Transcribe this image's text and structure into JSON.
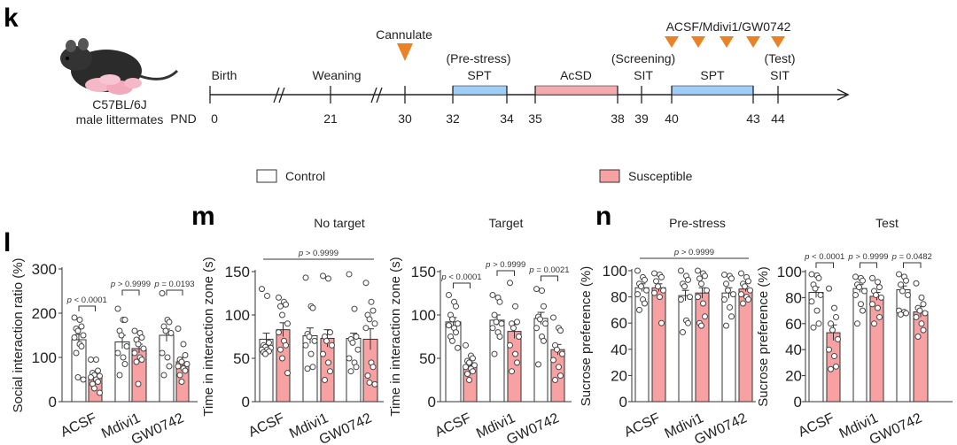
{
  "colors": {
    "control": "#FFFFFF",
    "susceptible": "#F7A1A3",
    "injection_marker": "#E8832A",
    "spt_bar": "#9FCDF6",
    "acsd_bar": "#F5AAAE",
    "axis": "#333333"
  },
  "panels": {
    "k": "k",
    "l": "l",
    "m": "m",
    "n": "n"
  },
  "timeline": {
    "mouse_strain": "C57BL/6J",
    "mouse_group": "male littermates",
    "axis_prefix": "PND",
    "days": [
      "0",
      "21",
      "30",
      "32",
      "34",
      "35",
      "38",
      "39",
      "40",
      "43",
      "44"
    ],
    "events": {
      "birth": "Birth",
      "weaning": "Weaning",
      "cannulate": "Cannulate",
      "pre_stress": "(Pre-stress)",
      "spt1": "SPT",
      "acsd": "AcSD",
      "screening": "(Screening)",
      "sit1": "SIT",
      "spt2": "SPT",
      "test": "(Test)",
      "sit2": "SIT",
      "treatment": "ACSF/Mdivi1/GW0742"
    },
    "treatment_marker_count": 5
  },
  "legend": {
    "control": "Control",
    "susceptible": "Susceptible"
  },
  "chart_data": [
    {
      "panel": "l",
      "type": "bar",
      "title": "",
      "ylabel": "Social interaction ratio (%)",
      "ylim": [
        0,
        300
      ],
      "yticks": [
        0,
        100,
        200,
        300
      ],
      "categories": [
        "ACSF",
        "Mdivi1",
        "GW0742"
      ],
      "series": [
        {
          "name": "Control",
          "values": [
            140,
            135,
            150
          ],
          "sem": [
            12,
            15,
            14
          ],
          "points": [
            [
              190,
              185,
              170,
              165,
              160,
              150,
              145,
              130,
              125,
              110,
              55,
              50
            ],
            [
              210,
              185,
              185,
              160,
              150,
              125,
              110,
              100,
              85,
              60
            ],
            [
              245,
              185,
              180,
              170,
              160,
              155,
              110,
              100,
              80,
              60
            ]
          ]
        },
        {
          "name": "Susceptible",
          "values": [
            57,
            120,
            90
          ],
          "sem": [
            8,
            10,
            10
          ],
          "points": [
            [
              95,
              95,
              70,
              65,
              60,
              58,
              55,
              50,
              45,
              40,
              30,
              20
            ],
            [
              160,
              155,
              145,
              140,
              130,
              120,
              110,
              100,
              95,
              90,
              40
            ],
            [
              165,
              130,
              105,
              95,
              90,
              85,
              80,
              75,
              70,
              60,
              45
            ]
          ]
        }
      ],
      "annotations": [
        {
          "type": "pair",
          "group": 0,
          "text": "p < 0.0001"
        },
        {
          "type": "pair",
          "group": 1,
          "text": "p > 0.9999"
        },
        {
          "type": "pair",
          "group": 2,
          "text": "p = 0.0193"
        }
      ]
    },
    {
      "panel": "m",
      "type": "bar",
      "title": "No target",
      "ylabel": "Time in interaction zone (s)",
      "ylim": [
        0,
        150
      ],
      "yticks": [
        0,
        50,
        100,
        150
      ],
      "categories": [
        "ACSF",
        "Mdivi1",
        "GW0742"
      ],
      "series": [
        {
          "name": "Control",
          "values": [
            72,
            76,
            73
          ],
          "sem": [
            7,
            9,
            6
          ],
          "points": [
            [
              130,
              122,
              68,
              65,
              63,
              62,
              60,
              60,
              58,
              57,
              55
            ],
            [
              143,
              110,
              108,
              78,
              75,
              70,
              65,
              55,
              40,
              38
            ],
            [
              147,
              107,
              75,
              72,
              68,
              60,
              50,
              45,
              40,
              35
            ]
          ]
        },
        {
          "name": "Susceptible",
          "values": [
            83,
            73,
            72
          ],
          "sem": [
            8,
            10,
            12
          ],
          "points": [
            [
              120,
              115,
              112,
              110,
              100,
              90,
              80,
              70,
              65,
              60,
              50,
              33
            ],
            [
              145,
              142,
              80,
              75,
              70,
              65,
              55,
              45,
              35,
              25
            ],
            [
              137,
              115,
              105,
              100,
              95,
              90,
              85,
              45,
              40,
              30,
              22,
              20
            ]
          ]
        }
      ],
      "annotations": [
        {
          "type": "across",
          "text": "p > 0.9999"
        }
      ]
    },
    {
      "panel": "m",
      "type": "bar",
      "title": "Target",
      "ylabel": "Time in interaction zone (s)",
      "ylim": [
        0,
        150
      ],
      "yticks": [
        0,
        50,
        100,
        150
      ],
      "categories": [
        "ACSF",
        "Mdivi1",
        "GW0742"
      ],
      "series": [
        {
          "name": "Control",
          "values": [
            92,
            94,
            96
          ],
          "sem": [
            5,
            6,
            7
          ],
          "points": [
            [
              123,
              115,
              110,
              100,
              95,
              90,
              88,
              85,
              80,
              75,
              70,
              62
            ],
            [
              123,
              120,
              115,
              100,
              92,
              90,
              85,
              80,
              75,
              55
            ],
            [
              130,
              128,
              110,
              98,
              95,
              90,
              85,
              75,
              70,
              43
            ]
          ]
        },
        {
          "name": "Susceptible",
          "values": [
            42,
            81,
            60
          ],
          "sem": [
            3,
            8,
            6
          ],
          "points": [
            [
              65,
              53,
              50,
              47,
              45,
              42,
              40,
              38,
              35,
              32,
              25
            ],
            [
              137,
              110,
              92,
              90,
              85,
              75,
              65,
              55,
              45,
              35
            ],
            [
              97,
              85,
              82,
              65,
              60,
              55,
              48,
              40,
              30,
              25
            ]
          ]
        }
      ],
      "annotations": [
        {
          "type": "pair",
          "group": 0,
          "text": "p < 0.0001"
        },
        {
          "type": "pair",
          "group": 1,
          "text": "p > 0.9999"
        },
        {
          "type": "pair",
          "group": 2,
          "text": "p = 0.0021"
        }
      ]
    },
    {
      "panel": "n",
      "type": "bar",
      "title": "Pre-stress",
      "ylabel": "Sucrose preference (%)",
      "ylim": [
        0,
        100
      ],
      "yticks": [
        0,
        20,
        40,
        60,
        80,
        100
      ],
      "categories": [
        "ACSF",
        "Mdivi1",
        "GW0742"
      ],
      "series": [
        {
          "name": "Control",
          "values": [
            87,
            81,
            83
          ],
          "sem": [
            3,
            4,
            4
          ],
          "points": [
            [
              100,
              95,
              93,
              90,
              88,
              85,
              82,
              78,
              75,
              70
            ],
            [
              100,
              96,
              93,
              90,
              88,
              80,
              78,
              62,
              60,
              53
            ],
            [
              97,
              96,
              94,
              90,
              85,
              82,
              78,
              72,
              65,
              58
            ]
          ]
        },
        {
          "name": "Susceptible",
          "values": [
            87,
            83,
            86
          ],
          "sem": [
            3,
            4,
            2
          ],
          "points": [
            [
              98,
              97,
              95,
              92,
              88,
              85,
              83,
              80,
              60
            ],
            [
              100,
              98,
              96,
              94,
              90,
              85,
              80,
              75,
              65,
              60,
              58
            ],
            [
              98,
              95,
              92,
              90,
              88,
              85,
              82,
              80,
              78,
              75
            ]
          ]
        }
      ],
      "annotations": [
        {
          "type": "across",
          "text": "p > 0.9999"
        }
      ]
    },
    {
      "panel": "n",
      "type": "bar",
      "title": "Test",
      "ylabel": "Sucrose preference (%)",
      "ylim": [
        0,
        100
      ],
      "yticks": [
        0,
        20,
        40,
        60,
        80,
        100
      ],
      "categories": [
        "ACSF",
        "Mdivi1",
        "GW0742"
      ],
      "series": [
        {
          "name": "Control",
          "values": [
            84,
            87,
            86
          ],
          "sem": [
            4,
            3,
            3
          ],
          "points": [
            [
              98,
              97,
              95,
              90,
              87,
              82,
              77,
              70,
              60,
              57
            ],
            [
              96,
              95,
              93,
              90,
              88,
              85,
              82,
              75,
              70,
              60
            ],
            [
              98,
              96,
              93,
              90,
              85,
              82,
              70,
              69,
              68,
              67
            ]
          ]
        },
        {
          "name": "Susceptible",
          "values": [
            53,
            81,
            69
          ],
          "sem": [
            6,
            3,
            4
          ],
          "points": [
            [
              87,
              72,
              65,
              60,
              55,
              48,
              40,
              35,
              27,
              25
            ],
            [
              95,
              92,
              88,
              85,
              82,
              80,
              75,
              72,
              65,
              60
            ],
            [
              91,
              80,
              75,
              72,
              70,
              68,
              65,
              60,
              55,
              50
            ]
          ]
        }
      ],
      "annotations": [
        {
          "type": "pair",
          "group": 0,
          "text": "p < 0.0001"
        },
        {
          "type": "pair",
          "group": 1,
          "text": "p > 0.9999"
        },
        {
          "type": "pair",
          "group": 2,
          "text": "p = 0.0482"
        }
      ]
    }
  ]
}
